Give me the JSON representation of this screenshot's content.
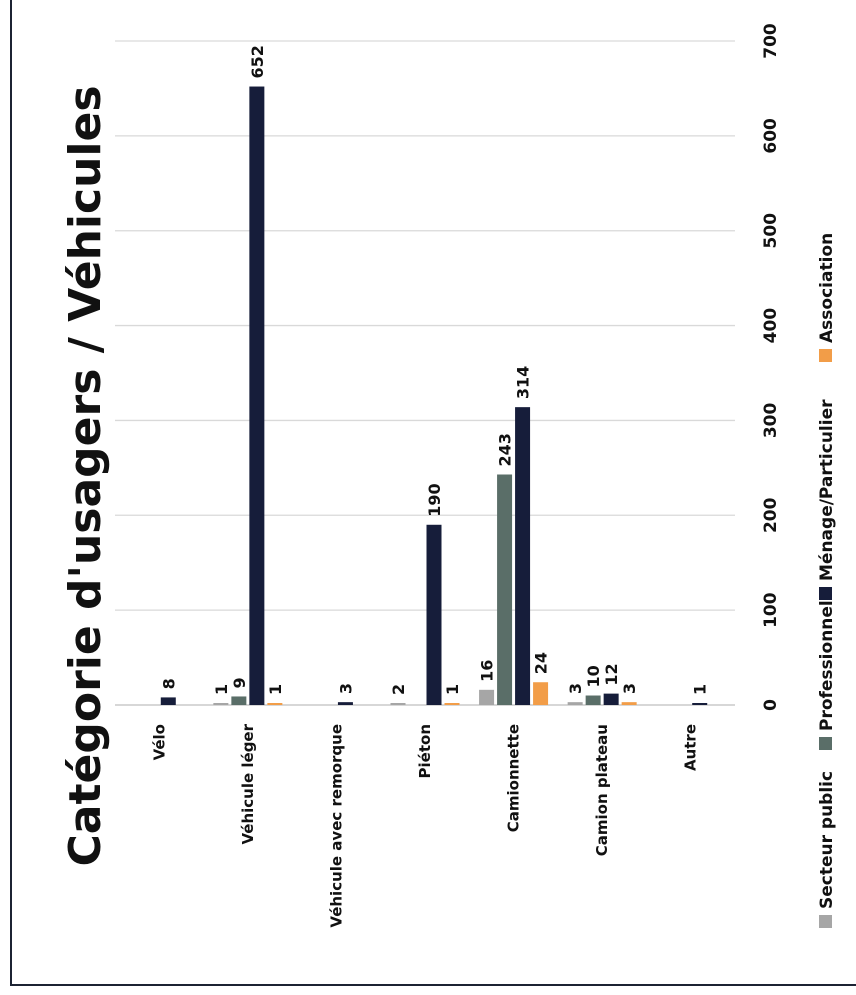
{
  "chart_data": {
    "type": "bar",
    "orientation": "rotated-90-clockwise",
    "title": "Catégorie d'usagers / Véhicules",
    "categories": [
      "Vélo",
      "Véhicule léger",
      "Véhicule avec remorque",
      "Piéton",
      "Camionnette",
      "Camion plateau",
      "Autre"
    ],
    "series": [
      {
        "name": "Secteur public",
        "color": "#a6a6a6",
        "values": [
          null,
          1,
          null,
          2,
          16,
          3,
          null
        ]
      },
      {
        "name": "Professionnel",
        "color": "#5a6e68",
        "values": [
          null,
          9,
          null,
          null,
          243,
          10,
          null
        ]
      },
      {
        "name": "Ménage/Particulier",
        "color": "#161d3a",
        "values": [
          8,
          652,
          3,
          190,
          314,
          12,
          1
        ]
      },
      {
        "name": "Association",
        "color": "#f29d48",
        "values": [
          null,
          1,
          null,
          1,
          24,
          3,
          null
        ]
      }
    ],
    "ylim": [
      0,
      700
    ],
    "yticks": [
      "0",
      "100",
      "200",
      "300",
      "400",
      "500",
      "600",
      "700"
    ],
    "grid": true,
    "legend_position": "bottom"
  }
}
